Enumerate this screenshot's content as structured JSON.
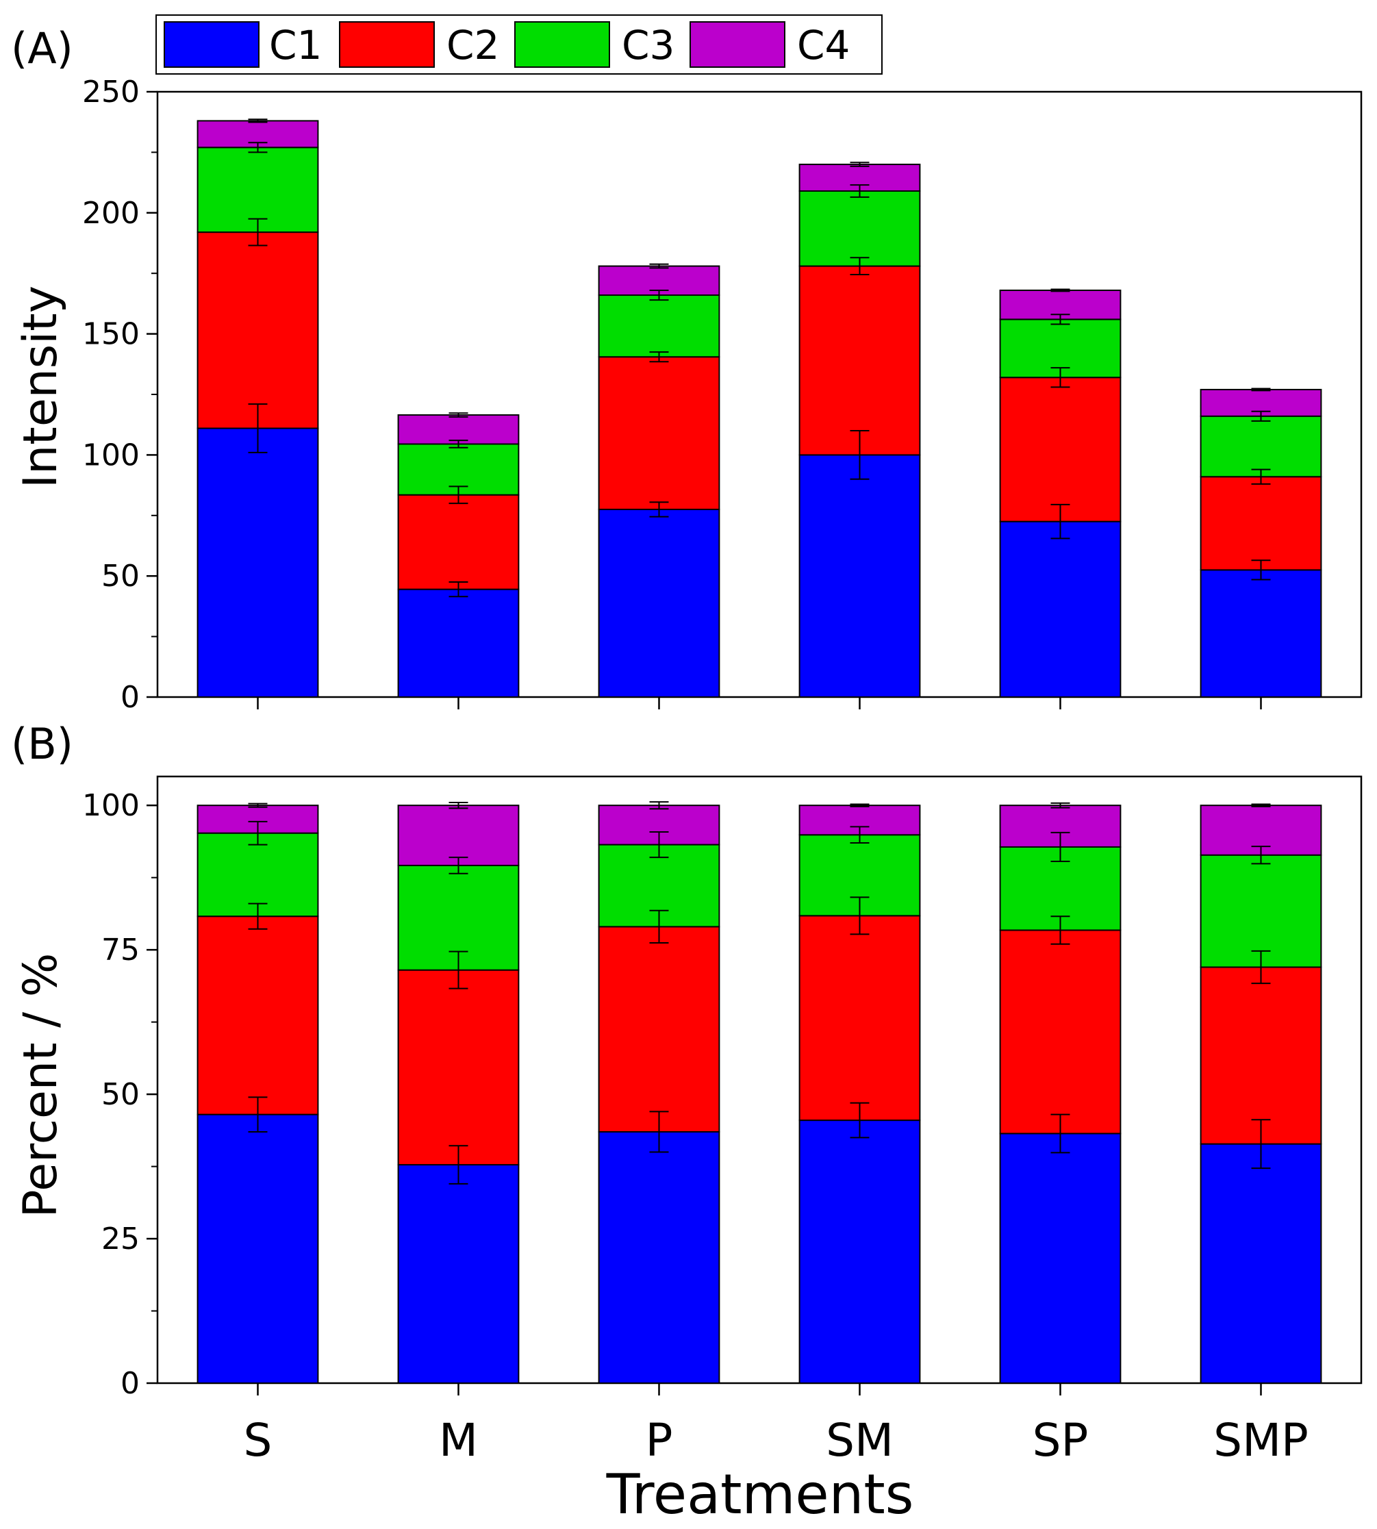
{
  "legend": [
    {
      "key": "C1",
      "label": "C1",
      "color": "#0000FF"
    },
    {
      "key": "C2",
      "label": "C2",
      "color": "#FF0000"
    },
    {
      "key": "C3",
      "label": "C3",
      "color": "#00DD00"
    },
    {
      "key": "C4",
      "label": "C4",
      "color": "#BB00CC"
    }
  ],
  "chart_data": [
    {
      "type": "bar",
      "stacked": true,
      "panel_label": "(A)",
      "title": "",
      "xlabel": "",
      "ylabel": "Intensity",
      "ylim": [
        0,
        250
      ],
      "yticks": [
        0,
        50,
        100,
        150,
        200,
        250
      ],
      "ytick_labels": [
        "0",
        "50",
        "100",
        "150",
        "200",
        "250"
      ],
      "categories": [
        "S",
        "M",
        "P",
        "SM",
        "SP",
        "SMP"
      ],
      "series": [
        {
          "name": "C1",
          "values": [
            111,
            44.5,
            77.5,
            100,
            72.5,
            52.5
          ],
          "errors": [
            10,
            3,
            3,
            10,
            7,
            4
          ]
        },
        {
          "name": "C2",
          "values": [
            81,
            39,
            63,
            78,
            59.5,
            38.5
          ],
          "errors": [
            5.5,
            3.5,
            2,
            3.5,
            4,
            3
          ]
        },
        {
          "name": "C3",
          "values": [
            35,
            21,
            25.5,
            31,
            24,
            25
          ],
          "errors": [
            2,
            1.5,
            2,
            2.5,
            2,
            2
          ]
        },
        {
          "name": "C4",
          "values": [
            11,
            12,
            12,
            11,
            12,
            11
          ],
          "errors": [
            0.6,
            0.8,
            0.8,
            0.8,
            0.4,
            0.4
          ]
        }
      ]
    },
    {
      "type": "bar",
      "stacked": true,
      "panel_label": "(B)",
      "title": "",
      "xlabel": "Treatments",
      "ylabel": "Percent / %",
      "ylim": [
        0,
        105
      ],
      "yticks": [
        0,
        25,
        50,
        75,
        100
      ],
      "ytick_labels": [
        "0",
        "25",
        "50",
        "75",
        "100"
      ],
      "categories": [
        "S",
        "M",
        "P",
        "SM",
        "SP",
        "SMP"
      ],
      "series": [
        {
          "name": "C1",
          "values": [
            46.5,
            37.8,
            43.5,
            45.5,
            43.2,
            41.4
          ],
          "errors": [
            3,
            3.3,
            3.5,
            3,
            3.3,
            4.2
          ]
        },
        {
          "name": "C2",
          "values": [
            34.3,
            33.7,
            35.5,
            35.4,
            35.2,
            30.6
          ],
          "errors": [
            2.2,
            3.2,
            2.8,
            3.2,
            2.4,
            2.8
          ]
        },
        {
          "name": "C3",
          "values": [
            14.4,
            18.1,
            14.2,
            14,
            14.4,
            19.4
          ],
          "errors": [
            2,
            1.4,
            2.2,
            1.4,
            2.5,
            1.5
          ]
        },
        {
          "name": "C4",
          "values": [
            4.8,
            10.4,
            6.8,
            5.1,
            7.2,
            8.6
          ],
          "errors": [
            0.3,
            0.5,
            0.6,
            0.2,
            0.4,
            0.2
          ]
        }
      ]
    }
  ]
}
